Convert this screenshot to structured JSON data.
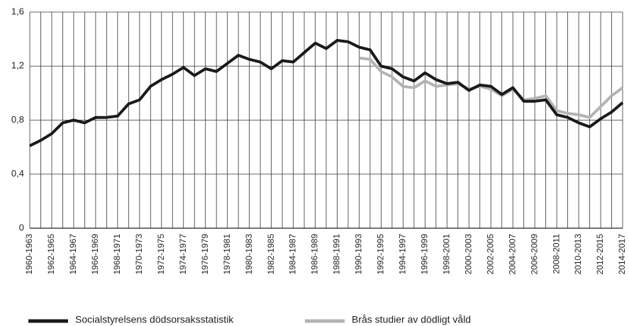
{
  "chart_data": {
    "type": "line",
    "categories": [
      "1960-1963",
      null,
      "1962-1965",
      null,
      "1964-1967",
      null,
      "1966-1969",
      null,
      "1968-1971",
      null,
      "1970-1973",
      null,
      "1972-1975",
      null,
      "1974-1977",
      null,
      "1976-1979",
      null,
      "1978-1981",
      null,
      "1980-1983",
      null,
      "1982-1985",
      null,
      "1984-1987",
      null,
      "1986-1989",
      null,
      "1988-1991",
      null,
      "1990-1993",
      null,
      "1992-1995",
      null,
      "1994-1997",
      null,
      "1996-1999",
      null,
      "1998-2001",
      null,
      "2000-2003",
      null,
      "2002-2005",
      null,
      "2004-2007",
      null,
      "2006-2009",
      null,
      "2008-2011",
      null,
      "2010-2013",
      null,
      "2012-2015",
      null,
      "2014-2017"
    ],
    "series": [
      {
        "name": "Socialstyrelsens dödsorsaksstatistik",
        "color": "#1a1a1a",
        "values": [
          0.61,
          0.65,
          0.7,
          0.78,
          0.8,
          0.78,
          0.82,
          0.82,
          0.83,
          0.92,
          0.95,
          1.05,
          1.1,
          1.14,
          1.19,
          1.13,
          1.18,
          1.16,
          1.22,
          1.28,
          1.25,
          1.23,
          1.18,
          1.24,
          1.23,
          1.3,
          1.37,
          1.33,
          1.39,
          1.38,
          1.34,
          1.32,
          1.2,
          1.18,
          1.12,
          1.09,
          1.15,
          1.1,
          1.07,
          1.08,
          1.02,
          1.06,
          1.05,
          0.99,
          1.04,
          0.94,
          0.94,
          0.95,
          0.84,
          0.82,
          0.78,
          0.75,
          0.81,
          0.86,
          0.93
        ]
      },
      {
        "name": "Brås studier av dödligt våld",
        "color": "#b3b3b3",
        "values": [
          null,
          null,
          null,
          null,
          null,
          null,
          null,
          null,
          null,
          null,
          null,
          null,
          null,
          null,
          null,
          null,
          null,
          null,
          null,
          null,
          null,
          null,
          null,
          null,
          null,
          null,
          null,
          null,
          null,
          null,
          1.26,
          1.25,
          1.16,
          1.12,
          1.05,
          1.04,
          1.09,
          1.05,
          1.06,
          1.07,
          1.03,
          1.05,
          1.03,
          0.98,
          1.03,
          0.95,
          0.96,
          0.98,
          0.87,
          0.85,
          0.84,
          0.82,
          0.9,
          0.98,
          1.04
        ]
      }
    ],
    "ylim": [
      0,
      1.6
    ],
    "yticks": [
      0,
      {
        "value": 0.4,
        "label": "0,4"
      },
      {
        "value": 0.8,
        "label": "0,8"
      },
      {
        "value": 1.2,
        "label": "1,2"
      },
      {
        "value": 1.6,
        "label": "1,6"
      }
    ],
    "grid": true
  }
}
